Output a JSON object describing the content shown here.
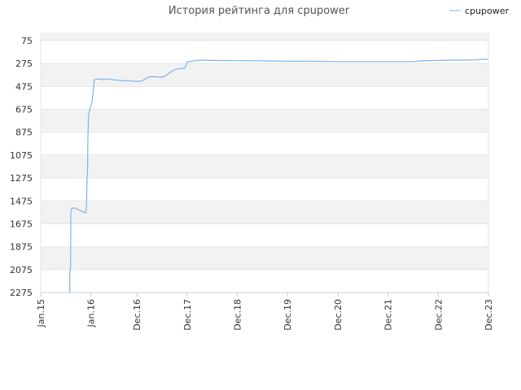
{
  "chart_data": {
    "type": "line",
    "title": "История рейтинга для cpupower",
    "y_inverted": true,
    "ylim": [
      2275,
      0
    ],
    "yticks": [
      75,
      275,
      475,
      675,
      875,
      1075,
      1275,
      1475,
      1675,
      1875,
      2075,
      2275
    ],
    "xlim": [
      "2015-01-01",
      "2023-12-01"
    ],
    "xticks": [
      {
        "label": "Jan.15",
        "date": "2015-01-01"
      },
      {
        "label": "Jan.16",
        "date": "2016-01-01"
      },
      {
        "label": "Dec.16",
        "date": "2016-12-01"
      },
      {
        "label": "Dec.17",
        "date": "2017-12-01"
      },
      {
        "label": "Dec.18",
        "date": "2018-12-01"
      },
      {
        "label": "Dec.19",
        "date": "2019-12-01"
      },
      {
        "label": "Dec.20",
        "date": "2020-12-01"
      },
      {
        "label": "Dec.21",
        "date": "2021-12-01"
      },
      {
        "label": "Dec.22",
        "date": "2022-12-01"
      },
      {
        "label": "Dec.23",
        "date": "2023-12-01"
      }
    ],
    "grid": true,
    "band_colors": [
      "#f2f2f2",
      "#ffffff"
    ],
    "legend_position": "top-right",
    "series": [
      {
        "name": "cpupower",
        "color": "#7cb5ec",
        "points": [
          [
            "2015-08-01",
            2275
          ],
          [
            "2015-08-01",
            2090
          ],
          [
            "2015-08-06",
            2060
          ],
          [
            "2015-08-08",
            1580
          ],
          [
            "2015-08-15",
            1540
          ],
          [
            "2015-09-01",
            1535
          ],
          [
            "2015-11-15",
            1575
          ],
          [
            "2015-11-25",
            1580
          ],
          [
            "2015-12-01",
            1500
          ],
          [
            "2015-12-03",
            1300
          ],
          [
            "2015-12-08",
            1200
          ],
          [
            "2015-12-10",
            960
          ],
          [
            "2015-12-15",
            720
          ],
          [
            "2016-01-01",
            640
          ],
          [
            "2016-01-10",
            610
          ],
          [
            "2016-01-25",
            420
          ],
          [
            "2016-02-10",
            410
          ],
          [
            "2016-04-01",
            415
          ],
          [
            "2016-05-01",
            410
          ],
          [
            "2016-07-01",
            420
          ],
          [
            "2016-09-01",
            425
          ],
          [
            "2016-11-15",
            430
          ],
          [
            "2017-01-01",
            430
          ],
          [
            "2017-02-15",
            400
          ],
          [
            "2017-03-01",
            390
          ],
          [
            "2017-04-01",
            390
          ],
          [
            "2017-06-01",
            395
          ],
          [
            "2017-07-01",
            380
          ],
          [
            "2017-08-01",
            350
          ],
          [
            "2017-09-01",
            330
          ],
          [
            "2017-10-01",
            320
          ],
          [
            "2017-11-15",
            315
          ],
          [
            "2017-12-01",
            260
          ],
          [
            "2018-01-01",
            255
          ],
          [
            "2018-03-01",
            245
          ],
          [
            "2018-06-01",
            248
          ],
          [
            "2018-12-01",
            250
          ],
          [
            "2019-06-01",
            252
          ],
          [
            "2019-12-01",
            255
          ],
          [
            "2020-06-01",
            255
          ],
          [
            "2020-12-01",
            258
          ],
          [
            "2021-06-01",
            258
          ],
          [
            "2021-12-01",
            258
          ],
          [
            "2022-06-01",
            258
          ],
          [
            "2022-07-01",
            255
          ],
          [
            "2022-08-01",
            252
          ],
          [
            "2022-12-01",
            248
          ],
          [
            "2023-03-01",
            245
          ],
          [
            "2023-06-01",
            245
          ],
          [
            "2023-09-01",
            243
          ],
          [
            "2023-10-15",
            238
          ],
          [
            "2023-12-01",
            238
          ]
        ]
      }
    ]
  }
}
